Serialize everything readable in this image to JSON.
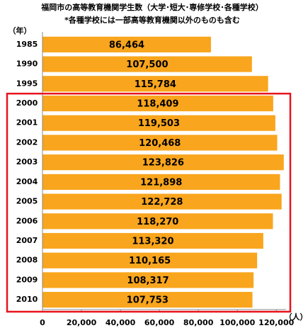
{
  "chart_data": {
    "type": "bar",
    "orientation": "horizontal",
    "title": "福岡市の高等教育機関学生数（大学･短大･専修学校･各種学校）",
    "subtitle": "*各種学校には一部高等教育機関以外のものも含む",
    "y_label": "（年）",
    "x_label": "（人）",
    "categories": [
      "1985",
      "1990",
      "1995",
      "2000",
      "2001",
      "2002",
      "2003",
      "2004",
      "2005",
      "2006",
      "2007",
      "2008",
      "2009",
      "2010"
    ],
    "values": [
      86464,
      107500,
      115784,
      118409,
      119503,
      120468,
      123826,
      121898,
      122728,
      118270,
      113320,
      110165,
      108317,
      107753
    ],
    "value_labels": [
      "86,464",
      "107,500",
      "115,784",
      "118,409",
      "119,503",
      "120,468",
      "123,826",
      "121,898",
      "122,728",
      "118,270",
      "113,320",
      "110,165",
      "108,317",
      "107,753"
    ],
    "color": "#f9a51d",
    "xlim": [
      0,
      125000
    ],
    "xticks": [
      0,
      {
        "value": 20000,
        "label": "20,000"
      },
      {
        "value": 40000,
        "label": "40,000"
      },
      {
        "value": 60000,
        "label": "60,000"
      },
      {
        "value": 80000,
        "label": "80,000"
      },
      {
        "value": 100000,
        "label": "100,000"
      },
      {
        "value": 120000,
        "label": "120,000"
      }
    ],
    "grid": false
  }
}
